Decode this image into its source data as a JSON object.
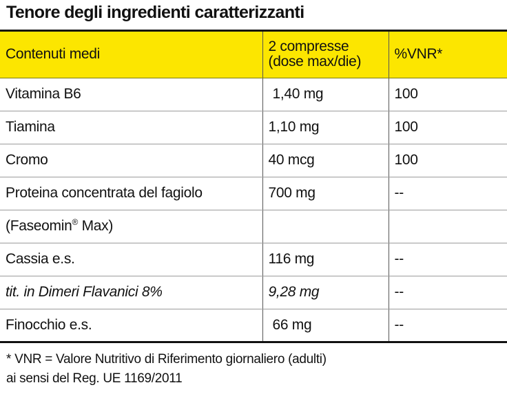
{
  "title": "Tenore degli ingredienti caratterizzanti",
  "colors": {
    "header_background": "#fce600",
    "text": "#111111"
  },
  "table": {
    "headers": {
      "col1": "Contenuti medi",
      "col2_line1": "2 compresse",
      "col2_line2": "(dose max/die)",
      "col3": "%VNR*"
    },
    "rows": [
      {
        "name": "Vitamina B6",
        "amount": "1,40 mg",
        "vnr": "100"
      },
      {
        "name": "Tiamina",
        "amount": "1,10 mg",
        "vnr": "100"
      },
      {
        "name": "Cromo",
        "amount": "40 mcg",
        "vnr": "100"
      },
      {
        "name": "Proteina concentrata del fagiolo",
        "amount": "700 mg",
        "vnr": "--"
      },
      {
        "name_prefix": "(Faseomin",
        "name_sup": "®",
        "name_suffix": " Max)",
        "amount": "",
        "vnr": ""
      },
      {
        "name": "Cassia e.s.",
        "amount": "116 mg",
        "vnr": "--"
      },
      {
        "name": "tit. in Dimeri Flavanici 8%",
        "amount": "9,28 mg",
        "vnr": "--"
      },
      {
        "name": "Finocchio e.s.",
        "amount": "66 mg",
        "vnr": "--"
      }
    ]
  },
  "footnote": {
    "line1": "* VNR = Valore Nutritivo di Riferimento giornaliero (adulti)",
    "line2": "ai sensi del Reg. UE 1169/2011"
  }
}
